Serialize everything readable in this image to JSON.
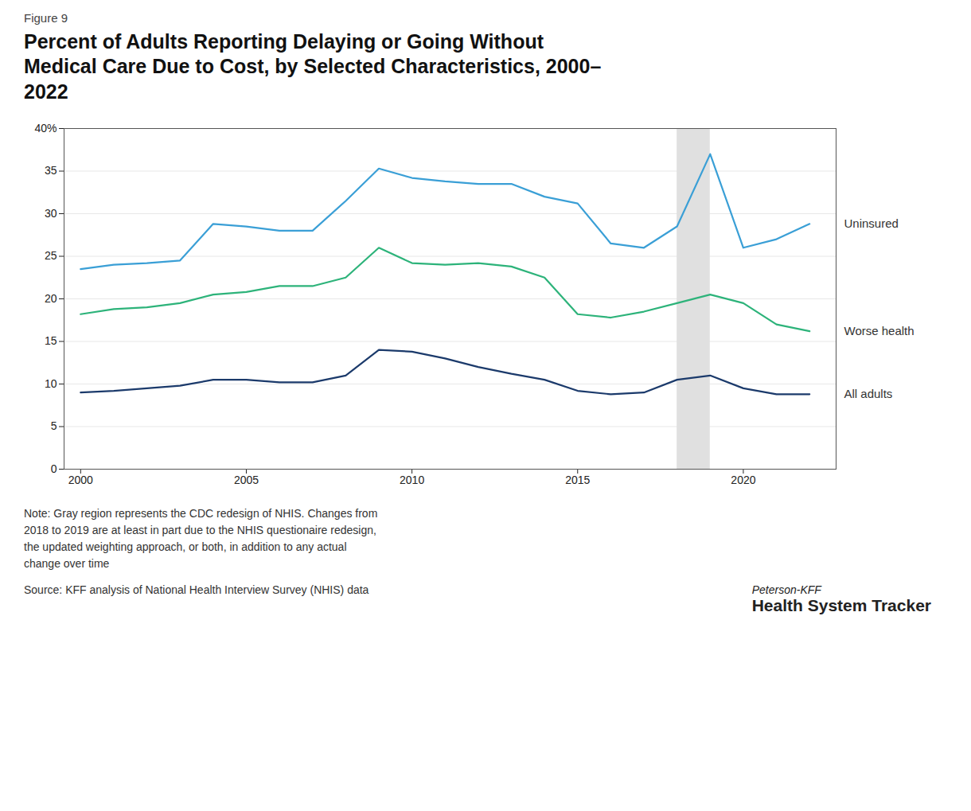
{
  "chart_data": {
    "type": "line",
    "title": "Percent of Adults Reporting Delaying or Going Without\nMedical Care Due to Cost, by Selected Characteristics, 2000–\n2022",
    "annotations": [
      "Figure 9",
      "Note: Gray region represents the CDC redesign of NHIS. Changes from\n2018 to 2019 are at least in part due to the NHIS questionaire redesign,\nthe updated weighting approach, or both, in addition to any actual\nchange over time",
      "Source: KFF analysis of National Health Interview Survey (NHIS) data",
      "Peterson-KFF",
      "Health System Tracker"
    ],
    "highlight_x": [
      2018,
      2019
    ],
    "x": [
      2000,
      2001,
      2002,
      2003,
      2004,
      2005,
      2006,
      2007,
      2008,
      2009,
      2010,
      2011,
      2012,
      2013,
      2014,
      2015,
      2016,
      2017,
      2018,
      2019,
      2020,
      2021,
      2022
    ],
    "series": [
      {
        "name": "Uninsured",
        "color": "#3A9FD6",
        "values": [
          23.5,
          24.0,
          24.2,
          24.5,
          28.8,
          28.5,
          28.0,
          28.0,
          31.5,
          35.3,
          34.2,
          33.8,
          33.5,
          33.5,
          32.0,
          31.2,
          26.5,
          26.0,
          28.5,
          37.0,
          26.0,
          27.0,
          28.8
        ]
      },
      {
        "name": "Worse health",
        "color": "#2DB37A",
        "values": [
          18.2,
          18.8,
          19.0,
          19.5,
          20.5,
          20.8,
          21.5,
          21.5,
          22.5,
          26.0,
          24.2,
          24.0,
          24.2,
          23.8,
          22.5,
          18.2,
          17.8,
          18.5,
          19.5,
          20.5,
          19.5,
          17.0,
          16.2
        ]
      },
      {
        "name": "All adults",
        "color": "#1B3A6B",
        "values": [
          9.0,
          9.2,
          9.5,
          9.8,
          10.5,
          10.5,
          10.2,
          10.2,
          11.0,
          14.0,
          13.8,
          13.0,
          12.0,
          11.2,
          10.5,
          9.2,
          8.8,
          9.0,
          10.5,
          11.0,
          9.5,
          8.8,
          8.8
        ]
      }
    ],
    "xlim": [
      1999.5,
      2022.8
    ],
    "xticks": [
      2000,
      2005,
      2010,
      2015,
      2020
    ],
    "ylim": [
      0,
      40
    ],
    "yticks": [
      0,
      5,
      10,
      15,
      20,
      25,
      30,
      35,
      {
        "value": 40,
        "label": "40%"
      }
    ],
    "grid": true
  }
}
